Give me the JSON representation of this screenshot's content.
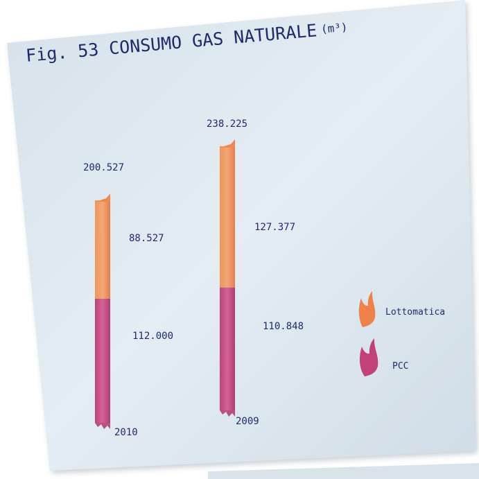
{
  "figure": {
    "title": "Fig. 53 CONSUMO GAS NATURALE",
    "unit": "(m³)"
  },
  "colors": {
    "card": "#dbe6ee",
    "lottomatica": "#f07a3c",
    "pcc": "#c0336e",
    "text": "#1f2a6b"
  },
  "chart_data": {
    "type": "bar",
    "stacked": true,
    "title": "Fig. 53 CONSUMO GAS NATURALE (m³)",
    "categories": [
      "2010",
      "2009"
    ],
    "series": [
      {
        "name": "PCC",
        "values": [
          112000,
          110848
        ]
      },
      {
        "name": "Lottomatica",
        "values": [
          88527,
          127377
        ]
      }
    ],
    "totals": [
      200527,
      238225
    ],
    "labels": {
      "totals": [
        "200.527",
        "238.225"
      ],
      "lottomatica": [
        "88.527",
        "127.377"
      ],
      "pcc": [
        "112.000",
        "110.848"
      ]
    },
    "legend": [
      "Lottomatica",
      "PCC"
    ],
    "legend_position": "right",
    "grid": false
  }
}
